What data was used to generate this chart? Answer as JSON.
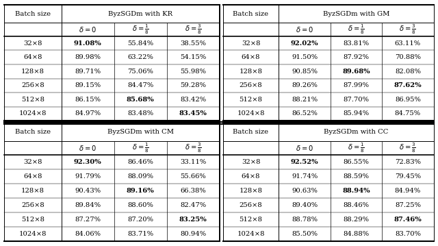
{
  "tables": [
    {
      "name": "ByzSGDm with KR",
      "col": 0,
      "row": 0,
      "batch_sizes": [
        "32×8",
        "64×8",
        "128×8",
        "256×8",
        "512×8",
        "1024×8"
      ],
      "delta_labels": [
        "$\\delta = 0$",
        "$\\delta = \\frac{1}{8}$",
        "$\\delta = \\frac{3}{8}$"
      ],
      "values": [
        [
          "91.08%",
          "55.84%",
          "38.55%"
        ],
        [
          "89.98%",
          "63.22%",
          "54.15%"
        ],
        [
          "89.71%",
          "75.06%",
          "55.98%"
        ],
        [
          "89.15%",
          "84.47%",
          "59.28%"
        ],
        [
          "86.15%",
          "85.68%",
          "83.42%"
        ],
        [
          "84.97%",
          "83.48%",
          "83.45%"
        ]
      ],
      "bold": [
        [
          true,
          false,
          false
        ],
        [
          false,
          false,
          false
        ],
        [
          false,
          false,
          false
        ],
        [
          false,
          false,
          false
        ],
        [
          false,
          true,
          false
        ],
        [
          false,
          false,
          true
        ]
      ]
    },
    {
      "name": "ByzSGDm with GM",
      "col": 1,
      "row": 0,
      "batch_sizes": [
        "32×8",
        "64×8",
        "128×8",
        "256×8",
        "512×8",
        "1024×8"
      ],
      "delta_labels": [
        "$\\delta = 0$",
        "$\\delta = \\frac{1}{8}$",
        "$\\delta = \\frac{3}{8}$"
      ],
      "values": [
        [
          "92.02%",
          "83.81%",
          "63.11%"
        ],
        [
          "91.50%",
          "87.92%",
          "70.88%"
        ],
        [
          "90.85%",
          "89.68%",
          "82.08%"
        ],
        [
          "89.26%",
          "87.99%",
          "87.62%"
        ],
        [
          "88.21%",
          "87.70%",
          "86.95%"
        ],
        [
          "86.52%",
          "85.94%",
          "84.75%"
        ]
      ],
      "bold": [
        [
          true,
          false,
          false
        ],
        [
          false,
          false,
          false
        ],
        [
          false,
          true,
          false
        ],
        [
          false,
          false,
          true
        ],
        [
          false,
          false,
          false
        ],
        [
          false,
          false,
          false
        ]
      ]
    },
    {
      "name": "ByzSGDm with CM",
      "col": 0,
      "row": 1,
      "batch_sizes": [
        "32×8",
        "64×8",
        "128×8",
        "256×8",
        "512×8",
        "1024×8"
      ],
      "delta_labels": [
        "$\\delta = 0$",
        "$\\delta = \\frac{1}{8}$",
        "$\\delta = \\frac{3}{8}$"
      ],
      "values": [
        [
          "92.30%",
          "86.46%",
          "33.11%"
        ],
        [
          "91.79%",
          "88.09%",
          "55.66%"
        ],
        [
          "90.43%",
          "89.16%",
          "66.38%"
        ],
        [
          "89.84%",
          "88.60%",
          "82.47%"
        ],
        [
          "87.27%",
          "87.20%",
          "83.25%"
        ],
        [
          "84.06%",
          "83.71%",
          "80.94%"
        ]
      ],
      "bold": [
        [
          true,
          false,
          false
        ],
        [
          false,
          false,
          false
        ],
        [
          false,
          true,
          false
        ],
        [
          false,
          false,
          false
        ],
        [
          false,
          false,
          true
        ],
        [
          false,
          false,
          false
        ]
      ]
    },
    {
      "name": "ByzSGDm with CC",
      "col": 1,
      "row": 1,
      "batch_sizes": [
        "32×8",
        "64×8",
        "128×8",
        "256×8",
        "512×8",
        "1024×8"
      ],
      "delta_labels": [
        "$\\delta = 0$",
        "$\\delta = \\frac{1}{8}$",
        "$\\delta = \\frac{3}{8}$"
      ],
      "values": [
        [
          "92.52%",
          "86.55%",
          "72.83%"
        ],
        [
          "91.74%",
          "88.59%",
          "79.45%"
        ],
        [
          "90.63%",
          "88.94%",
          "84.94%"
        ],
        [
          "89.40%",
          "88.46%",
          "87.25%"
        ],
        [
          "88.78%",
          "88.29%",
          "87.46%"
        ],
        [
          "85.50%",
          "84.88%",
          "83.70%"
        ]
      ],
      "bold": [
        [
          true,
          false,
          false
        ],
        [
          false,
          false,
          false
        ],
        [
          false,
          true,
          false
        ],
        [
          false,
          false,
          false
        ],
        [
          false,
          false,
          true
        ],
        [
          false,
          false,
          false
        ]
      ]
    }
  ]
}
